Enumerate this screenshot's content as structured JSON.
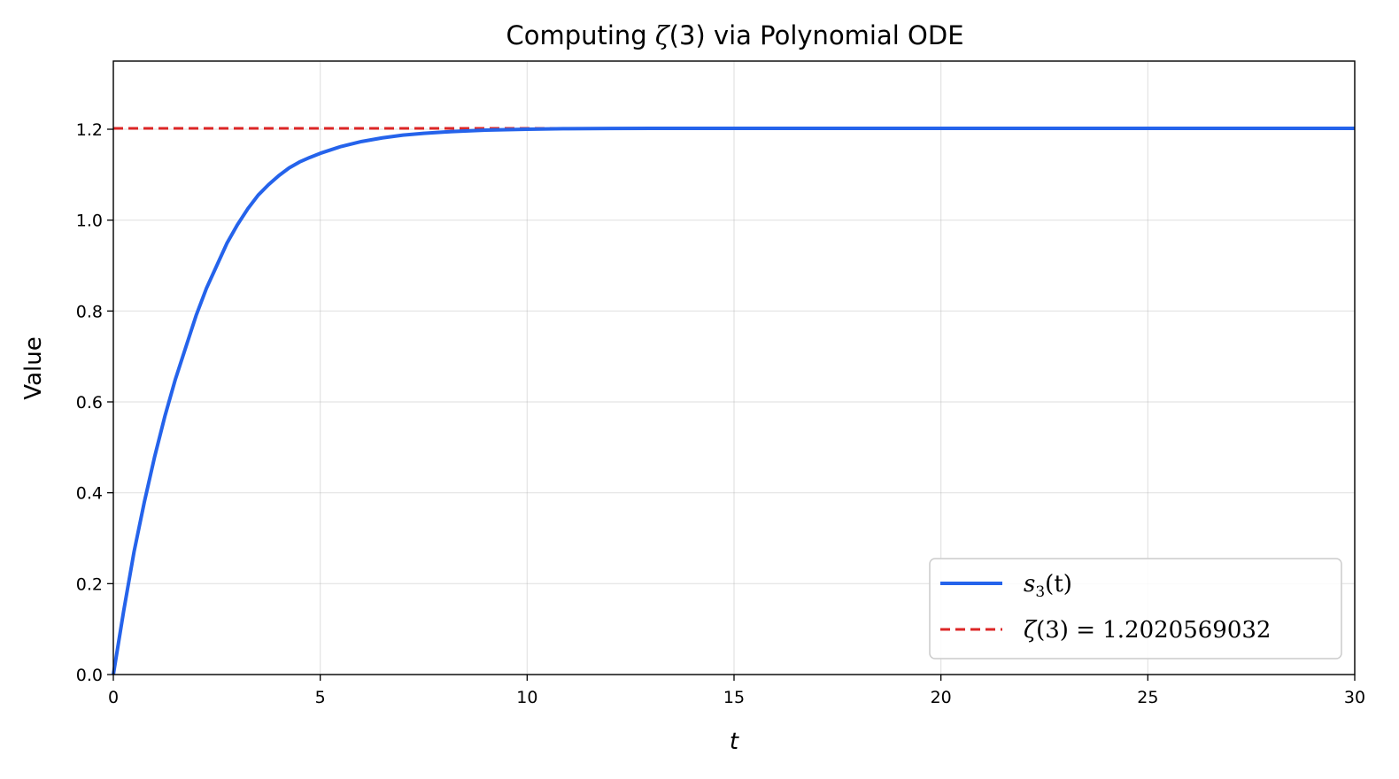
{
  "chart_data": {
    "type": "line",
    "title_prefix": "Computing ",
    "title_symbol": "ζ",
    "title_suffix": "(3) via Polynomial ODE",
    "xlabel": "t",
    "ylabel": "Value",
    "xlim": [
      0,
      30
    ],
    "ylim": [
      0,
      1.35
    ],
    "xticks": [
      0,
      5,
      10,
      15,
      20,
      25,
      30
    ],
    "yticks": [
      0.0,
      0.2,
      0.4,
      0.6,
      0.8,
      1.0,
      1.2
    ],
    "grid": true,
    "legend_position": "bottom-right",
    "series": [
      {
        "legend_label": "s3(t)",
        "legend_s": "s",
        "legend_sub": "3",
        "legend_rest": "(t)",
        "color": "#2563eb",
        "style": "solid",
        "x": [
          0,
          0.25,
          0.5,
          0.75,
          1,
          1.25,
          1.5,
          1.75,
          2,
          2.25,
          2.5,
          2.75,
          3,
          3.25,
          3.5,
          3.75,
          4,
          4.25,
          4.5,
          4.75,
          5,
          5.5,
          6,
          6.5,
          7,
          7.5,
          8,
          8.5,
          9,
          9.5,
          10,
          11,
          12,
          13,
          14,
          15,
          17,
          20,
          25,
          30
        ],
        "y": [
          0,
          0.14,
          0.27,
          0.38,
          0.48,
          0.57,
          0.65,
          0.72,
          0.79,
          0.85,
          0.9,
          0.95,
          0.99,
          1.025,
          1.055,
          1.078,
          1.098,
          1.115,
          1.128,
          1.138,
          1.147,
          1.162,
          1.173,
          1.181,
          1.187,
          1.191,
          1.194,
          1.196,
          1.198,
          1.199,
          1.2,
          1.2013,
          1.2017,
          1.2019,
          1.202,
          1.202,
          1.202,
          1.202,
          1.202,
          1.202
        ]
      },
      {
        "legend_label": "ζ(3) = 1.2020569032",
        "legend_symbol": "ζ",
        "legend_rest": "(3) = 1.2020569032",
        "color": "#dc2626",
        "style": "dashed",
        "x": [
          0,
          30
        ],
        "y": [
          1.2020569032,
          1.2020569032
        ]
      }
    ]
  }
}
